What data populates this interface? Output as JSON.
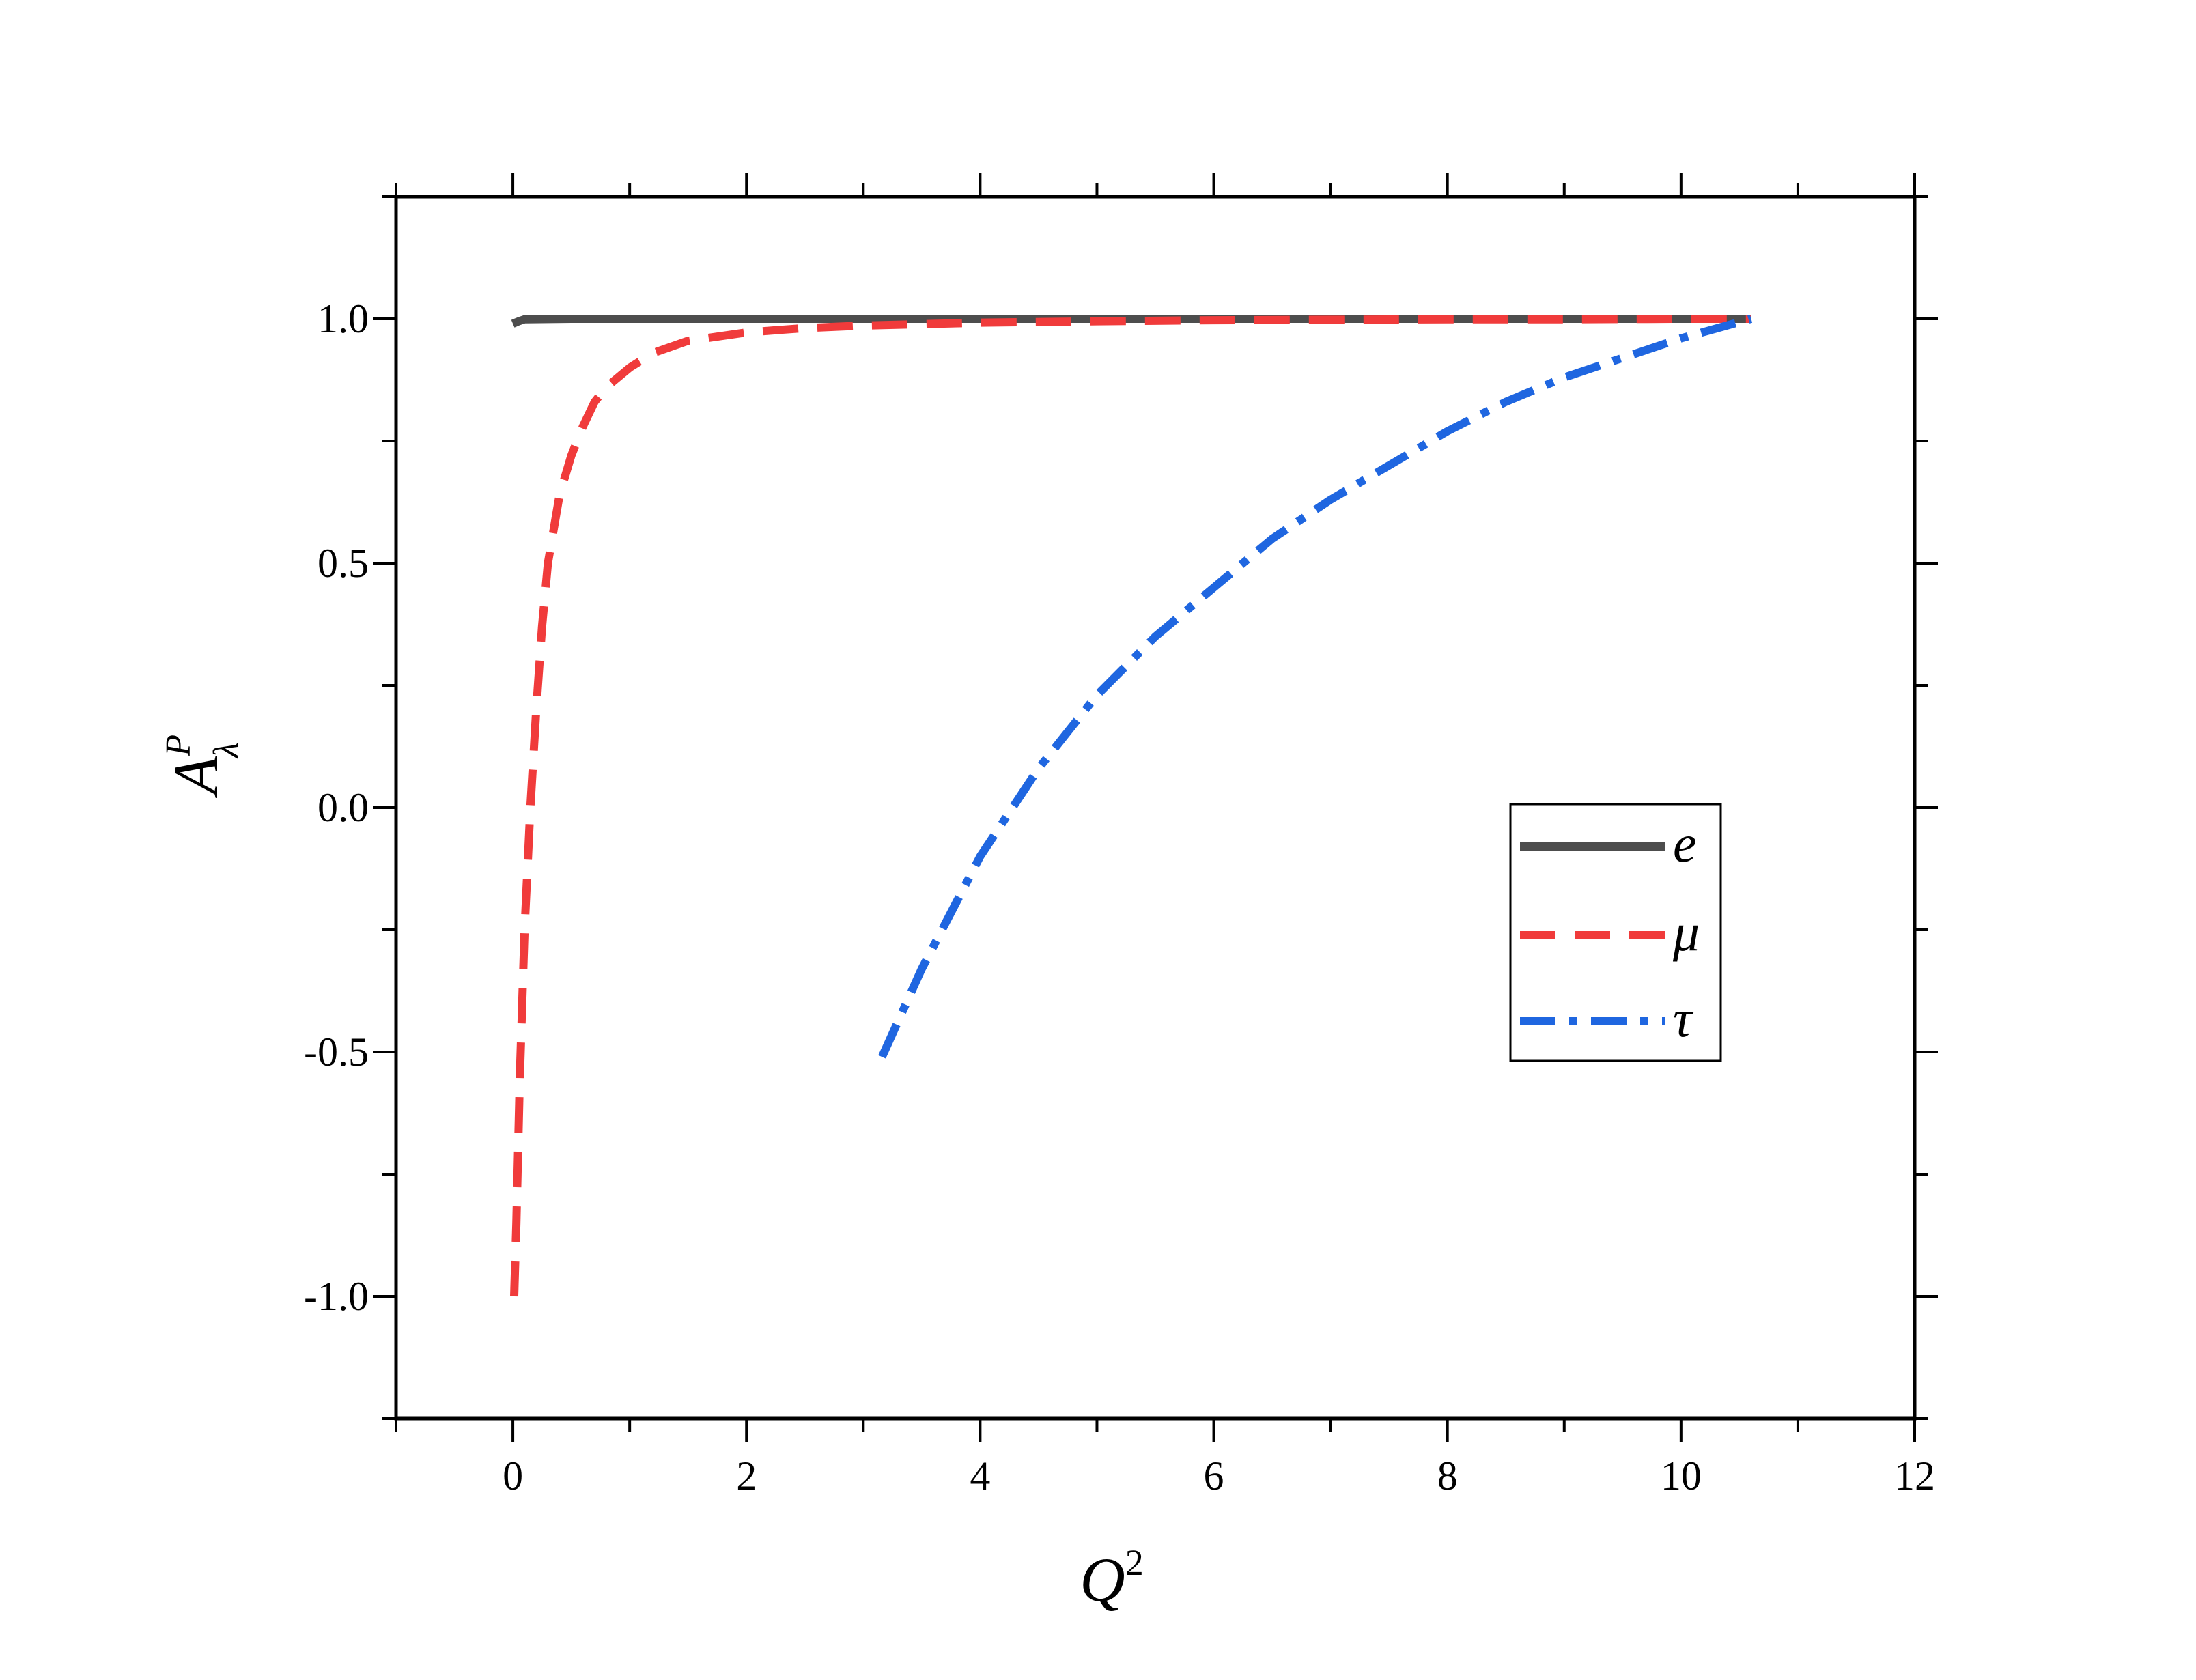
{
  "chart_data": {
    "type": "line",
    "title": "",
    "xlabel": {
      "base": "Q",
      "sup": "2"
    },
    "ylabel": {
      "base": "A",
      "sup": "P",
      "sub": "λ"
    },
    "xlim": [
      -1,
      12
    ],
    "ylim": [
      -1.25,
      1.25
    ],
    "x_ticks": [
      0,
      2,
      4,
      6,
      8,
      10,
      12
    ],
    "x_tick_labels": [
      "0",
      "2",
      "4",
      "6",
      "8",
      "10",
      "12"
    ],
    "y_ticks": [
      -1.0,
      -0.5,
      0.0,
      0.5,
      1.0
    ],
    "y_tick_labels": [
      "-1.0",
      "-0.5",
      "0.0",
      "0.5",
      "1.0"
    ],
    "grid": false,
    "legend_position": "right",
    "series": [
      {
        "name": "e",
        "color": "#4d4d4d",
        "dash": "solid",
        "x": [
          0.0,
          0.05,
          0.1,
          0.5,
          1,
          2,
          3,
          4,
          5,
          6,
          7,
          8,
          9,
          10,
          10.6
        ],
        "y": [
          0.99,
          0.995,
          0.999,
          1.0,
          1.0,
          1.0,
          1.0,
          1.0,
          1.0,
          1.0,
          1.0,
          1.0,
          1.0,
          1.0,
          1.0
        ]
      },
      {
        "name": "μ",
        "color": "#f03b3b",
        "dash": "dash",
        "x": [
          0.011,
          0.03,
          0.06,
          0.1,
          0.15,
          0.2,
          0.25,
          0.3,
          0.4,
          0.5,
          0.6,
          0.7,
          0.8,
          1.0,
          1.2,
          1.5,
          2.0,
          2.5,
          3.0,
          4.0,
          5.0,
          6.0,
          7.0,
          8.0,
          9.0,
          10.0,
          10.6
        ],
        "y": [
          -1.0,
          -0.85,
          -0.55,
          -0.25,
          0.0,
          0.2,
          0.37,
          0.5,
          0.64,
          0.72,
          0.78,
          0.83,
          0.86,
          0.9,
          0.93,
          0.955,
          0.972,
          0.981,
          0.986,
          0.992,
          0.995,
          0.997,
          0.998,
          0.999,
          0.999,
          1.0,
          1.0
        ]
      },
      {
        "name": "τ",
        "color": "#1f66e0",
        "dash": "dashdot",
        "x": [
          3.16,
          3.5,
          4.0,
          4.5,
          5.0,
          5.5,
          6.0,
          6.5,
          7.0,
          7.5,
          8.0,
          8.5,
          9.0,
          9.5,
          10.0,
          10.3,
          10.6
        ],
        "y": [
          -0.51,
          -0.33,
          -0.1,
          0.08,
          0.23,
          0.35,
          0.45,
          0.55,
          0.63,
          0.7,
          0.77,
          0.83,
          0.88,
          0.92,
          0.96,
          0.98,
          1.0
        ]
      }
    ]
  }
}
